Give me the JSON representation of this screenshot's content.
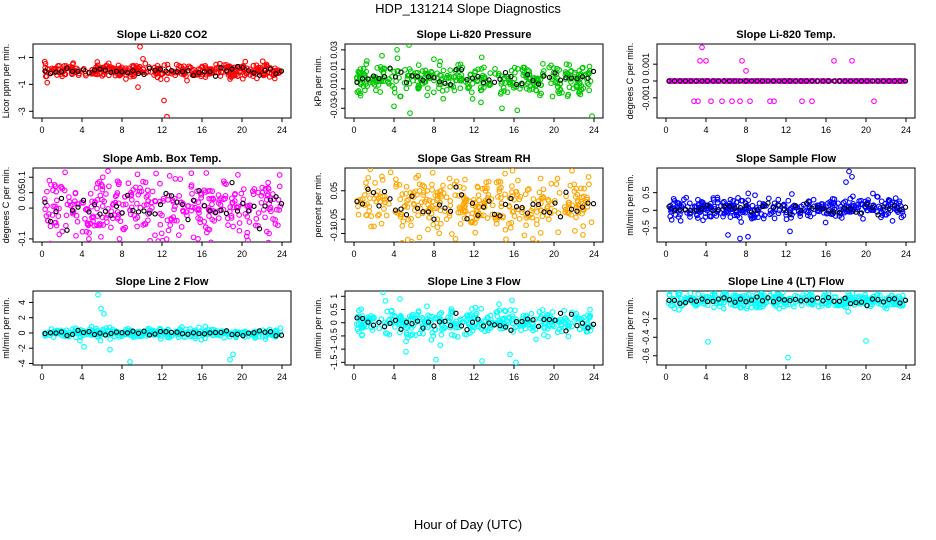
{
  "figure": {
    "title": "HDP_131214  Slope Diagnostics",
    "xlabel": "Hour of Day (UTC)"
  },
  "chart_data": [
    {
      "type": "scatter",
      "title": "Slope Li-820 CO2",
      "ylabel": "Licor ppm per min.",
      "color": "#ff0000",
      "xlim": [
        0,
        24
      ],
      "ylim": [
        -3.5,
        2.0
      ],
      "yticks": [
        -3,
        -1,
        1
      ],
      "xticks": [
        0,
        4,
        8,
        12,
        16,
        20,
        24
      ],
      "center": 0.0,
      "spread": 0.25,
      "outliers": [
        [
          9.8,
          1.8
        ],
        [
          10.1,
          0.9
        ],
        [
          9.6,
          -1.2
        ],
        [
          12.2,
          -2.2
        ],
        [
          12.5,
          -3.4
        ]
      ]
    },
    {
      "type": "scatter",
      "title": "Slope Li-820 Pressure",
      "ylabel": "kPa per min.",
      "color": "#00c800",
      "xlim": [
        0,
        24
      ],
      "ylim": [
        -0.04,
        0.036
      ],
      "yticks": [
        -0.03,
        -0.01,
        0.01,
        0.03
      ],
      "xticks": [
        0,
        4,
        8,
        12,
        16,
        20,
        24
      ],
      "center": 0.0,
      "spread": 0.008,
      "outliers": [
        [
          4.3,
          0.03
        ],
        [
          5.5,
          0.035
        ],
        [
          4.0,
          -0.028
        ],
        [
          5.6,
          -0.035
        ],
        [
          23.8,
          -0.038
        ],
        [
          14.8,
          -0.03
        ]
      ]
    },
    {
      "type": "scatter",
      "title": "Slope Li-820 Temp.",
      "ylabel": "degrees C per min.",
      "color": "#ff00ff",
      "xlim": [
        0,
        24
      ],
      "ylim": [
        -0.0022,
        0.0022
      ],
      "yticks": [
        -0.001,
        0.0,
        0.001
      ],
      "xticks": [
        0,
        4,
        8,
        12,
        16,
        20,
        24
      ],
      "center": 0.0,
      "spread": 0.0,
      "outliers": [
        [
          3.6,
          0.002
        ],
        [
          3.4,
          0.0012
        ],
        [
          4.0,
          0.0012
        ],
        [
          7.6,
          0.0012
        ],
        [
          8.0,
          0.0006
        ],
        [
          16.8,
          0.0012
        ],
        [
          18.6,
          0.0012
        ],
        [
          2.8,
          -0.0012
        ],
        [
          3.2,
          -0.0012
        ],
        [
          4.5,
          -0.0012
        ],
        [
          5.6,
          -0.0012
        ],
        [
          6.6,
          -0.0012
        ],
        [
          7.4,
          -0.0012
        ],
        [
          8.4,
          -0.0012
        ],
        [
          10.4,
          -0.0012
        ],
        [
          10.8,
          -0.0012
        ],
        [
          13.6,
          -0.0012
        ],
        [
          14.6,
          -0.0012
        ],
        [
          20.8,
          -0.0012
        ]
      ]
    },
    {
      "type": "scatter",
      "title": "Slope Amb. Box Temp.",
      "ylabel": "degrees C per min.",
      "color": "#ff00ff",
      "xlim": [
        0,
        24
      ],
      "ylim": [
        -0.11,
        0.13
      ],
      "yticks": [
        -0.1,
        0.0,
        0.05,
        0.1
      ],
      "xticks": [
        0,
        4,
        8,
        12,
        16,
        20,
        24
      ],
      "center": 0.0,
      "spread": 0.05,
      "outliers": [
        [
          6.6,
          0.12
        ],
        [
          15.6,
          -0.1
        ],
        [
          3.4,
          -0.09
        ]
      ]
    },
    {
      "type": "scatter",
      "title": "Slope Gas Stream RH",
      "ylabel": "percent per min.",
      "color": "#ffa500",
      "xlim": [
        0,
        24
      ],
      "ylim": [
        -0.13,
        0.13
      ],
      "yticks": [
        -0.1,
        -0.05,
        0.05
      ],
      "xticks": [
        0,
        4,
        8,
        12,
        16,
        20,
        24
      ],
      "center": 0.0,
      "spread": 0.05,
      "outliers": [
        [
          21.8,
          0.12
        ],
        [
          15.2,
          -0.12
        ],
        [
          2.8,
          0.1
        ]
      ]
    },
    {
      "type": "scatter",
      "title": "Slope Sample Flow",
      "ylabel": "ml/min per min.",
      "color": "#0000ff",
      "xlim": [
        0,
        24
      ],
      "ylim": [
        -0.9,
        1.2
      ],
      "yticks": [
        -0.5,
        0.0,
        0.5
      ],
      "xticks": [
        0,
        4,
        8,
        12,
        16,
        20,
        24
      ],
      "center": 0.05,
      "spread": 0.15,
      "outliers": [
        [
          18.3,
          1.1
        ],
        [
          18.6,
          0.95
        ],
        [
          18.0,
          0.8
        ],
        [
          7.4,
          -0.8
        ],
        [
          8.2,
          -0.75
        ],
        [
          12.4,
          -0.6
        ],
        [
          6.2,
          -0.7
        ]
      ]
    },
    {
      "type": "scatter",
      "title": "Slope Line 2 Flow",
      "ylabel": "ml/min per min.",
      "color": "#00ffff",
      "xlim": [
        0,
        24
      ],
      "ylim": [
        -4.2,
        5.5
      ],
      "yticks": [
        -4,
        -2,
        0,
        2,
        4
      ],
      "xticks": [
        0,
        4,
        8,
        12,
        16,
        20,
        24
      ],
      "center": 0.0,
      "spread": 0.3,
      "outliers": [
        [
          5.6,
          5.0
        ],
        [
          5.9,
          3.2
        ],
        [
          6.2,
          2.5
        ],
        [
          6.8,
          -2.2
        ],
        [
          8.8,
          -3.8
        ],
        [
          18.8,
          -3.5
        ],
        [
          19.1,
          -2.8
        ],
        [
          4.2,
          -1.8
        ],
        [
          3.8,
          -1.0
        ]
      ]
    },
    {
      "type": "scatter",
      "title": "Slope Line 3 Flow",
      "ylabel": "ml/min per min.",
      "color": "#00ffff",
      "xlim": [
        0,
        24
      ],
      "ylim": [
        -1.6,
        1.2
      ],
      "yticks": [
        -1.5,
        -1.0,
        -0.5,
        0.0,
        0.5,
        1.0
      ],
      "xticks": [
        0,
        4,
        8,
        12,
        16,
        20,
        24
      ],
      "center": 0.0,
      "spread": 0.25,
      "outliers": [
        [
          2.9,
          1.15
        ],
        [
          15.8,
          0.85
        ],
        [
          5.2,
          -1.1
        ],
        [
          8.2,
          -1.4
        ],
        [
          12.8,
          -1.45
        ],
        [
          15.6,
          -1.2
        ],
        [
          16.2,
          -1.5
        ]
      ]
    },
    {
      "type": "scatter",
      "title": "Slope Line 4 (LT) Flow",
      "ylabel": "ml/min per min.",
      "color": "#00ffff",
      "xlim": [
        0,
        24
      ],
      "ylim": [
        -0.7,
        0.1
      ],
      "yticks": [
        -0.6,
        -0.4,
        -0.2
      ],
      "xticks": [
        0,
        4,
        8,
        12,
        16,
        20,
        24
      ],
      "center": 0.0,
      "spread": 0.04,
      "outliers": [
        [
          4.2,
          -0.45
        ],
        [
          12.2,
          -0.62
        ],
        [
          20.0,
          -0.44
        ]
      ]
    }
  ]
}
